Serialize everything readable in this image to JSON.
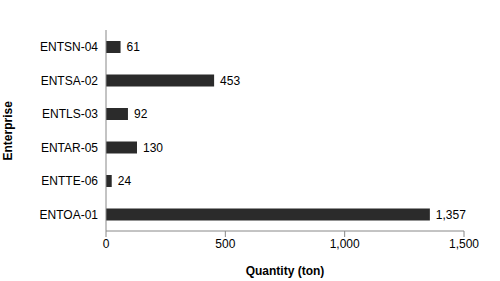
{
  "chart_data": {
    "type": "bar",
    "orientation": "horizontal",
    "x_label": "Quantity (ton)",
    "y_label": "Enterprise",
    "categories": [
      "ENTSN-04",
      "ENTSA-02",
      "ENTLS-03",
      "ENTAR-05",
      "ENTTE-06",
      "ENTOA-01"
    ],
    "values": [
      61,
      453,
      92,
      130,
      24,
      1357
    ],
    "value_labels": [
      "61",
      "453",
      "92",
      "130",
      "24",
      "1,357"
    ],
    "color": "#2b2b2b",
    "xlim": [
      0,
      1500
    ],
    "xticks": [
      0,
      500,
      {
        "value": 1000,
        "label": "1,000"
      },
      {
        "value": 1500,
        "label": "1,500"
      }
    ],
    "grid": false,
    "data_labels": true
  }
}
